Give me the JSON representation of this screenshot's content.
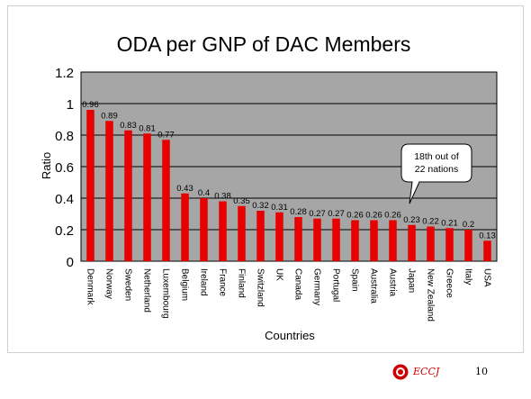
{
  "chart_data": {
    "type": "bar",
    "title": "ODA per GNP of DAC Members",
    "xlabel": "Countries",
    "ylabel": "Ratio",
    "ylim": [
      0,
      1.2
    ],
    "yticks": [
      "0",
      "0.2",
      "0.4",
      "0.6",
      "0.8",
      "1",
      "1.2"
    ],
    "grid": true,
    "categories": [
      "Denmark",
      "Norway",
      "Sweden",
      "Netherland",
      "Luxembourg",
      "Belgium",
      "Ireland",
      "France",
      "Finland",
      "Switzland",
      "UK",
      "Canada",
      "Germany",
      "Portugal",
      "Spain",
      "Australia",
      "Austria",
      "Japan",
      "New Zealand",
      "Greece",
      "Italy",
      "USA"
    ],
    "values": [
      0.96,
      0.89,
      0.83,
      0.81,
      0.77,
      0.43,
      0.4,
      0.38,
      0.35,
      0.32,
      0.31,
      0.28,
      0.27,
      0.27,
      0.26,
      0.26,
      0.26,
      0.23,
      0.22,
      0.21,
      0.2,
      0.13
    ],
    "value_labels": [
      "0.96",
      "0.89",
      "0.83",
      "0.81",
      "0.77",
      "0.43",
      "0.4",
      "0.38",
      "0.35",
      "0.32",
      "0.31",
      "0.28",
      "0.27",
      "0.27",
      "0.26",
      "0.26",
      "0.26",
      "0.23",
      "0.22",
      "0.21",
      "0.2",
      "0.13"
    ],
    "annotation": {
      "lines": [
        "18th out of",
        "22 nations"
      ],
      "target": "Japan"
    },
    "colors": {
      "bar": "#e60000",
      "plot_bg": "#a6a6a6",
      "grid": "#000000",
      "title": "#000000"
    }
  },
  "footer": {
    "org": "ECCJ",
    "page": "10",
    "logo_color": "#cc0000"
  }
}
